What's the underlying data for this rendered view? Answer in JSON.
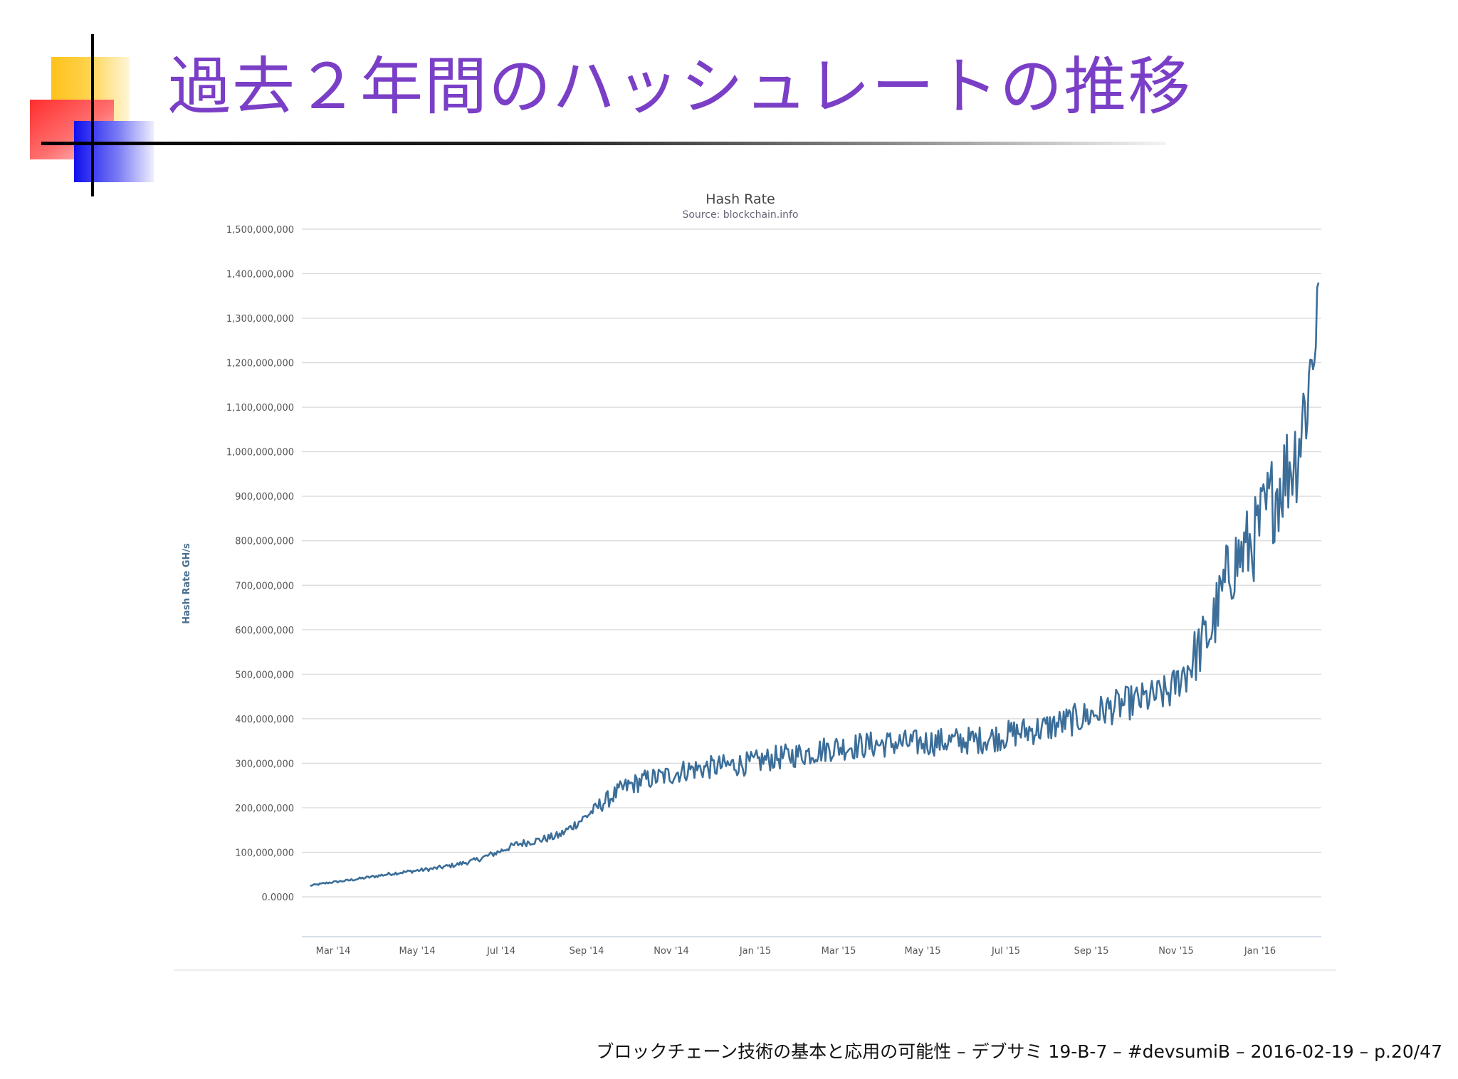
{
  "slide": {
    "title": "過去２年間のハッシュレートの推移",
    "footer": "ブロックチェーン技術の基本と応用の可能性 – デブサミ 19-B-7 – #devsumiB – 2016-02-19 – p.20/47"
  },
  "colors": {
    "title": "#7a3fc6",
    "series": "#3b6e99",
    "grid": "#d8d8d8",
    "axis_text": "#555555"
  },
  "chart_data": {
    "type": "line",
    "title": "Hash Rate",
    "subtitle": "Source: blockchain.info",
    "xlabel": "",
    "ylabel": "Hash Rate GH/s",
    "ylim": [
      0,
      1500000000
    ],
    "y_ticks": [
      "0.0000",
      "100,000,000",
      "200,000,000",
      "300,000,000",
      "400,000,000",
      "500,000,000",
      "600,000,000",
      "700,000,000",
      "800,000,000",
      "900,000,000",
      "1,000,000,000",
      "1,100,000,000",
      "1,200,000,000",
      "1,300,000,000",
      "1,400,000,000",
      "1,500,000,000"
    ],
    "x_ticks": [
      "Mar '14",
      "May '14",
      "Jul '14",
      "Sep '14",
      "Nov '14",
      "Jan '15",
      "Mar '15",
      "May '15",
      "Jul '15",
      "Sep '15",
      "Nov '15",
      "Jan '16"
    ],
    "xlim": [
      "2014-02-09",
      "2016-02-19"
    ],
    "grid": true,
    "legend": "none",
    "series": [
      {
        "values": [
          [
            "2014-02-15",
            25000000
          ],
          [
            "2014-03-01",
            32000000
          ],
          [
            "2014-03-15",
            37000000
          ],
          [
            "2014-04-01",
            45000000
          ],
          [
            "2014-04-15",
            52000000
          ],
          [
            "2014-05-01",
            58000000
          ],
          [
            "2014-05-15",
            63000000
          ],
          [
            "2014-06-01",
            72000000
          ],
          [
            "2014-06-15",
            82000000
          ],
          [
            "2014-07-01",
            100000000
          ],
          [
            "2014-07-15",
            118000000
          ],
          [
            "2014-08-01",
            128000000
          ],
          [
            "2014-08-15",
            138000000
          ],
          [
            "2014-09-01",
            175000000
          ],
          [
            "2014-09-15",
            210000000
          ],
          [
            "2014-10-01",
            245000000
          ],
          [
            "2014-10-15",
            262000000
          ],
          [
            "2014-11-01",
            272000000
          ],
          [
            "2014-11-15",
            285000000
          ],
          [
            "2014-12-01",
            290000000
          ],
          [
            "2014-12-15",
            295000000
          ],
          [
            "2015-01-01",
            300000000
          ],
          [
            "2015-01-15",
            310000000
          ],
          [
            "2015-02-01",
            318000000
          ],
          [
            "2015-02-15",
            325000000
          ],
          [
            "2015-03-01",
            335000000
          ],
          [
            "2015-03-15",
            338000000
          ],
          [
            "2015-04-01",
            342000000
          ],
          [
            "2015-04-15",
            345000000
          ],
          [
            "2015-05-01",
            345000000
          ],
          [
            "2015-05-15",
            348000000
          ],
          [
            "2015-06-01",
            350000000
          ],
          [
            "2015-06-15",
            352000000
          ],
          [
            "2015-07-01",
            360000000
          ],
          [
            "2015-07-15",
            370000000
          ],
          [
            "2015-08-01",
            378000000
          ],
          [
            "2015-08-15",
            390000000
          ],
          [
            "2015-09-01",
            405000000
          ],
          [
            "2015-09-15",
            420000000
          ],
          [
            "2015-10-01",
            435000000
          ],
          [
            "2015-10-15",
            445000000
          ],
          [
            "2015-11-01",
            460000000
          ],
          [
            "2015-11-15",
            520000000
          ],
          [
            "2015-12-01",
            600000000
          ],
          [
            "2015-12-15",
            740000000
          ],
          [
            "2016-01-01",
            800000000
          ],
          [
            "2016-01-15",
            900000000
          ],
          [
            "2016-02-01",
            1000000000
          ],
          [
            "2016-02-10",
            1150000000
          ],
          [
            "2016-02-15",
            1300000000
          ],
          [
            "2016-02-17",
            1380000000
          ]
        ]
      }
    ]
  }
}
